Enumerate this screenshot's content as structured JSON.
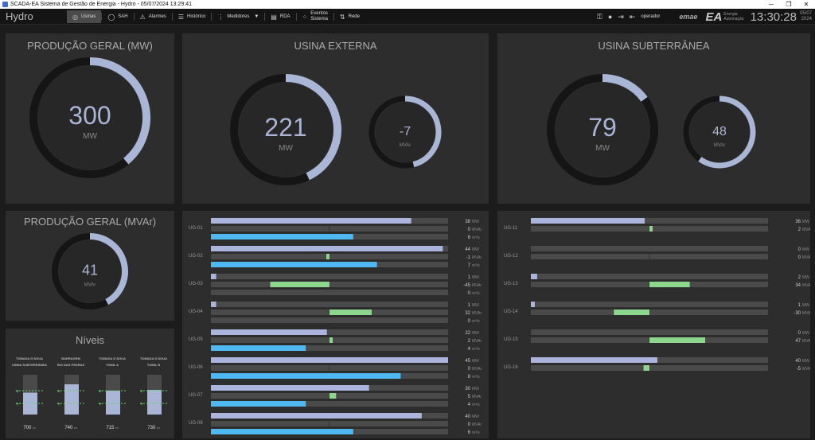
{
  "window": {
    "title": "SCADA-EA Sistema de Gestão de Energia - Hydro - 05/07/2024 13:29:41",
    "min": "─",
    "restore": "❐",
    "close": "✕"
  },
  "toolbar": {
    "brand": "Hydro",
    "nav": [
      {
        "label": "Usinas",
        "icon": "◎",
        "icon_name": "plant-icon",
        "active": true
      },
      {
        "label": "SAH",
        "icon": "◯",
        "icon_name": "sah-icon"
      },
      {
        "label": "Alarmes",
        "icon": "⚠",
        "icon_name": "alarm-icon"
      },
      {
        "label": "Histórico",
        "icon": "☰",
        "icon_name": "database-icon"
      },
      {
        "label": "Medidores",
        "icon": "⋮",
        "icon_name": "meter-icon",
        "dropdown": "▼"
      },
      {
        "label": "RDA",
        "icon": "▤",
        "icon_name": "rda-icon"
      },
      {
        "label": "Eventos Sistema",
        "line1": "Eventos",
        "line2": "Sistema",
        "icon": "⁘",
        "icon_name": "events-icon"
      },
      {
        "label": "Rede",
        "icon": "⇅",
        "icon_name": "network-icon"
      }
    ],
    "user": "operador",
    "logo_emae": "emae",
    "logo_ea": "EA",
    "logo_ea_sub1": "Energia",
    "logo_ea_sub2": "Automação",
    "clock": "13:30:28",
    "date1": "05/07",
    "date2": "2024"
  },
  "panels": {
    "producao_mw": {
      "title": "PRODUÇÃO GERAL (MW)",
      "value": "300",
      "unit": "MW",
      "fraction": 0.39
    },
    "externa": {
      "title": "USINA EXTERNA",
      "value": "221",
      "unit": "MW",
      "fraction": 0.43,
      "mvar_value": "-7",
      "mvar_unit": "MVAr",
      "mvar_fraction": 0.46
    },
    "subterranea": {
      "title": "USINA SUBTERRÂNEA",
      "value": "79",
      "unit": "MW",
      "fraction": 0.15,
      "mvar_value": "48",
      "mvar_unit": "MVAr",
      "mvar_fraction": 0.6
    },
    "producao_mvar": {
      "title": "PRODUÇÃO GERAL (MVAr)",
      "value": "41",
      "unit": "MVAr",
      "fraction": 0.42
    }
  },
  "niveis": {
    "title": "Níveis",
    "columns": [
      {
        "t1": "TOMADA D'ÁGUA",
        "t2": "USINA SUBTERRÂNEA",
        "value": "700",
        "unit": "m",
        "level": 0.55
      },
      {
        "t1": "BARRAGEM",
        "t2": "RIO DAS PEDRAS",
        "value": "740",
        "unit": "m",
        "level": 0.76
      },
      {
        "t1": "TOMADA D'ÁGUA",
        "t2": "TOMIL A",
        "value": "715",
        "unit": "m",
        "level": 0.6
      },
      {
        "t1": "TOMADA D'ÁGUA",
        "t2": "TOMIL B",
        "value": "730",
        "unit": "m",
        "level": 0.62
      }
    ]
  },
  "units_externa": [
    {
      "name": "UG-01",
      "mw": 38,
      "mw_label": "38",
      "mvar": 0,
      "mvar_label": "0",
      "flow": 6,
      "flow_label": "6"
    },
    {
      "name": "UG-02",
      "mw": 44,
      "mw_label": "44",
      "mvar": -1,
      "mvar_label": "-1",
      "flow": 7,
      "flow_label": "7"
    },
    {
      "name": "UG-03",
      "mw": 1,
      "mw_label": "1",
      "mvar": -45,
      "mvar_label": "-45",
      "flow": 0,
      "flow_label": "0"
    },
    {
      "name": "UG-04",
      "mw": 1,
      "mw_label": "1",
      "mvar": 32,
      "mvar_label": "32",
      "flow": 0,
      "flow_label": "0"
    },
    {
      "name": "UG-05",
      "mw": 22,
      "mw_label": "22",
      "mvar": 2,
      "mvar_label": "2",
      "flow": 4,
      "flow_label": "4"
    },
    {
      "name": "UG-06",
      "mw": 45,
      "mw_label": "45",
      "mvar": 0,
      "mvar_label": "0",
      "flow": 8,
      "flow_label": "8"
    },
    {
      "name": "UG-07",
      "mw": 30,
      "mw_label": "30",
      "mvar": 5,
      "mvar_label": "5",
      "flow": 4,
      "flow_label": "4"
    },
    {
      "name": "UG-08",
      "mw": 40,
      "mw_label": "40",
      "mvar": 0,
      "mvar_label": "0",
      "flow": 6,
      "flow_label": "6"
    }
  ],
  "units_subterranea": [
    {
      "name": "UG-11",
      "mw": 36,
      "mw_label": "36",
      "mvar": 2,
      "mvar_label": "2"
    },
    {
      "name": "UG-12",
      "mw": 0,
      "mw_label": "0",
      "mvar": 0,
      "mvar_label": "0"
    },
    {
      "name": "UG-13",
      "mw": 2,
      "mw_label": "2",
      "mvar": 34,
      "mvar_label": "34"
    },
    {
      "name": "UG-14",
      "mw": 1,
      "mw_label": "1",
      "mvar": -30,
      "mvar_label": "-30"
    },
    {
      "name": "UG-15",
      "mw": 0,
      "mw_label": "0",
      "mvar": 47,
      "mvar_label": "47"
    },
    {
      "name": "UG-16",
      "mw": 40,
      "mw_label": "40",
      "mvar": -5,
      "mvar_label": "-5"
    }
  ],
  "units_labels": {
    "mw": "MW",
    "mvar": "MVAr",
    "flow": "m³/s"
  },
  "colors": {
    "panel": "#2d2d2d",
    "gauge_track": "#151515",
    "gauge_fill": "#a9b6d6",
    "mw_bar": "#aab4dd",
    "mvar_bar": "#8dd68d",
    "flow_bar": "#4fb8f0",
    "bar_track": "#4a4a4a"
  }
}
